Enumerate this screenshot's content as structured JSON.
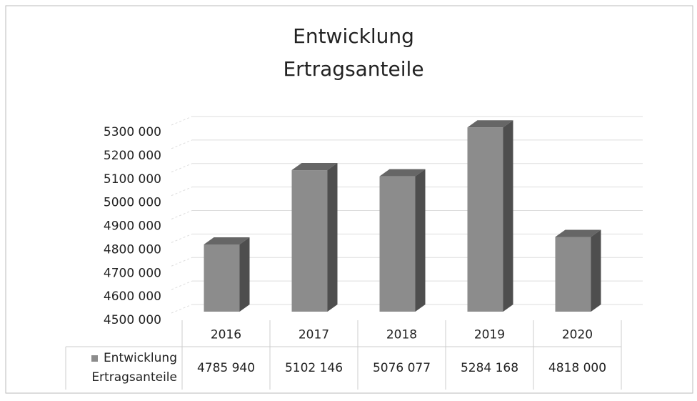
{
  "chart_data": {
    "type": "bar3d",
    "title": "Entwicklung Ertragsanteile",
    "categories": [
      "2016",
      "2017",
      "2018",
      "2019",
      "2020"
    ],
    "series": [
      {
        "name": "Entwicklung Ertragsanteile",
        "color": "#8c8c8c",
        "values": [
          4785940,
          5102146,
          5076077,
          5284168,
          4818000
        ],
        "value_labels": [
          "4785 940",
          "5102 146",
          "5076 077",
          "5284 168",
          "4818 000"
        ]
      }
    ],
    "ylim": [
      4500000,
      5300000
    ],
    "yticks": [
      {
        "value": 4500000,
        "label": "4500 000"
      },
      {
        "value": 4600000,
        "label": "4600 000"
      },
      {
        "value": 4700000,
        "label": "4700 000"
      },
      {
        "value": 4800000,
        "label": "4800 000"
      },
      {
        "value": 4900000,
        "label": "4900 000"
      },
      {
        "value": 5000000,
        "label": "5000 000"
      },
      {
        "value": 5100000,
        "label": "5100 000"
      },
      {
        "value": 5200000,
        "label": "5200 000"
      },
      {
        "value": 5300000,
        "label": "5300 000"
      }
    ],
    "grid": true
  }
}
